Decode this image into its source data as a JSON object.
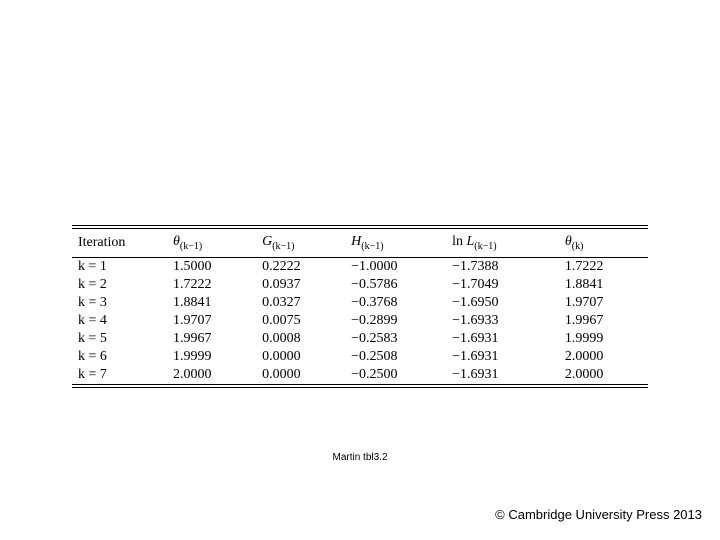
{
  "table": {
    "columns": [
      {
        "label_plain": "Iteration",
        "is_math": false
      },
      {
        "var": "θ",
        "sub": "(k−1)"
      },
      {
        "var": "G",
        "sub": "(k−1)"
      },
      {
        "var": "H",
        "sub": "(k−1)"
      },
      {
        "prefix": "ln ",
        "var": "L",
        "sub": "(k−1)"
      },
      {
        "var": "θ",
        "sub": "(k)"
      }
    ],
    "rows": [
      {
        "k": "k = 1",
        "th": "1.5000",
        "G": "0.2222",
        "H": "−1.0000",
        "lnL": "−1.7388",
        "thk": "1.7222"
      },
      {
        "k": "k = 2",
        "th": "1.7222",
        "G": "0.0937",
        "H": "−0.5786",
        "lnL": "−1.7049",
        "thk": "1.8841"
      },
      {
        "k": "k = 3",
        "th": "1.8841",
        "G": "0.0327",
        "H": "−0.3768",
        "lnL": "−1.6950",
        "thk": "1.9707"
      },
      {
        "k": "k = 4",
        "th": "1.9707",
        "G": "0.0075",
        "H": "−0.2899",
        "lnL": "−1.6933",
        "thk": "1.9967"
      },
      {
        "k": "k = 5",
        "th": "1.9967",
        "G": "0.0008",
        "H": "−0.2583",
        "lnL": "−1.6931",
        "thk": "1.9999"
      },
      {
        "k": "k = 6",
        "th": "1.9999",
        "G": "0.0000",
        "H": "−0.2508",
        "lnL": "−1.6931",
        "thk": "2.0000"
      },
      {
        "k": "k = 7",
        "th": "2.0000",
        "G": "0.0000",
        "H": "−0.2500",
        "lnL": "−1.6931",
        "thk": "2.0000"
      }
    ],
    "font_size": 14,
    "rule_color": "#000000",
    "col_widths_pct": [
      16,
      15,
      15,
      17,
      19,
      15
    ]
  },
  "caption": "Martin tbl3.2",
  "copyright": "© Cambridge University Press 2013"
}
